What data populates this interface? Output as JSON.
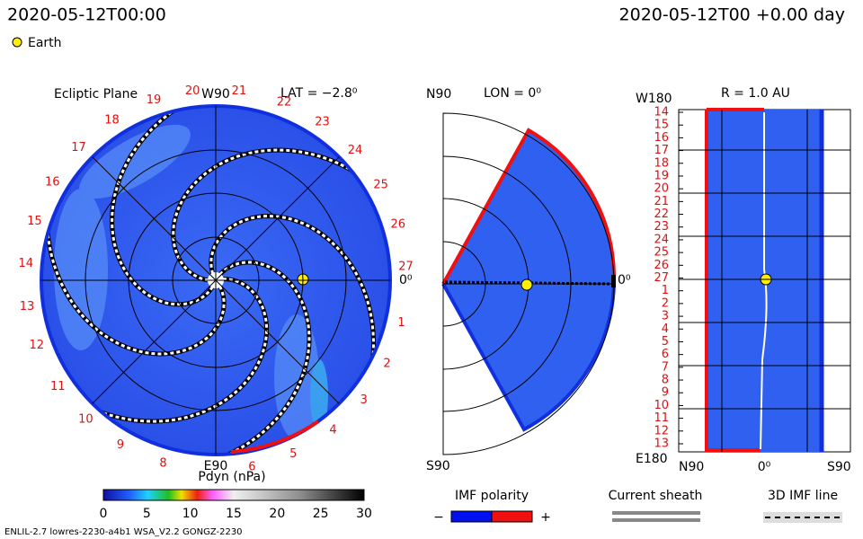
{
  "header": {
    "time": "2020-05-12T00:00",
    "elapsed": "2020-05-12T00 +0.00 day",
    "earth_legend": "Earth"
  },
  "ecliptic": {
    "title": "Ecliptic Plane",
    "top": "W90",
    "lat": "LAT = −2.8⁰",
    "bottom": "E90",
    "right": "0⁰",
    "carrington": [
      "27",
      "26",
      "25",
      "24",
      "23",
      "22",
      "21",
      "20",
      "19",
      "18",
      "17",
      "16",
      "15",
      "14",
      "13",
      "12",
      "11",
      "10",
      "9",
      "8",
      "6",
      "5",
      "4",
      "3",
      "2",
      "1"
    ]
  },
  "meridional": {
    "top": "N90",
    "lon": "LON = 0⁰",
    "right": "0⁰",
    "bottom": "S90"
  },
  "radial": {
    "top": "W180",
    "r": "R = 1.0 AU",
    "rows": [
      "14",
      "15",
      "16",
      "17",
      "18",
      "19",
      "20",
      "21",
      "22",
      "23",
      "24",
      "25",
      "26",
      "27",
      "1",
      "2",
      "3",
      "4",
      "5",
      "6",
      "7",
      "8",
      "9",
      "10",
      "11",
      "12",
      "13"
    ],
    "bottom": "E180",
    "x_labels": [
      "N90",
      "0⁰",
      "S90"
    ]
  },
  "colorbar": {
    "label": "Pdyn (nPa)",
    "ticks": [
      0,
      5,
      10,
      15,
      20,
      25,
      30
    ]
  },
  "legend": {
    "imf_title": "IMF polarity",
    "minus": "−",
    "plus": "+",
    "sheath": "Current sheath",
    "imf_line": "3D IMF line"
  },
  "footer": "ENLIL-2.7 lowres-2230-a4b1 WSA_V2.2 GONGZ-2230"
}
